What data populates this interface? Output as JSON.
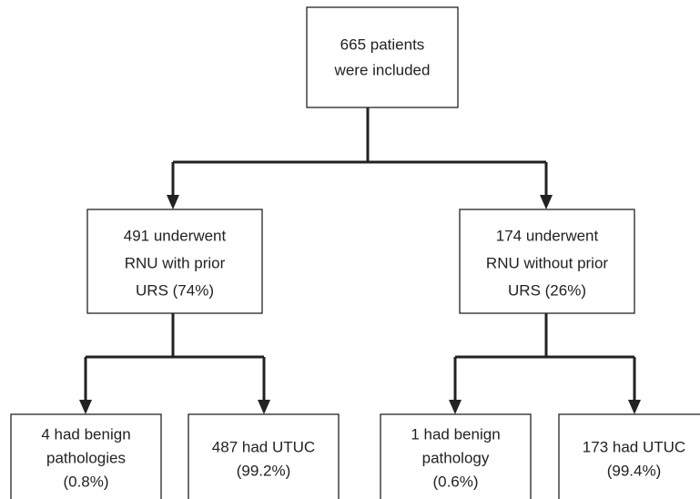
{
  "nodes": [
    {
      "lines": [
        "665 patients",
        "were included"
      ]
    },
    {
      "lines": [
        "491 underwent",
        "RNU with prior",
        "URS (74%)"
      ]
    },
    {
      "lines": [
        "174 underwent",
        "RNU without prior",
        "URS (26%)"
      ]
    },
    {
      "lines": [
        "4 had benign",
        "pathologies",
        "(0.8%)"
      ]
    },
    {
      "lines": [
        "487 had UTUC",
        "(99.2%)"
      ]
    },
    {
      "lines": [
        "1 had benign",
        "pathology",
        "(0.6%)"
      ]
    },
    {
      "lines": [
        "173 had UTUC",
        "(99.4%)"
      ]
    }
  ]
}
